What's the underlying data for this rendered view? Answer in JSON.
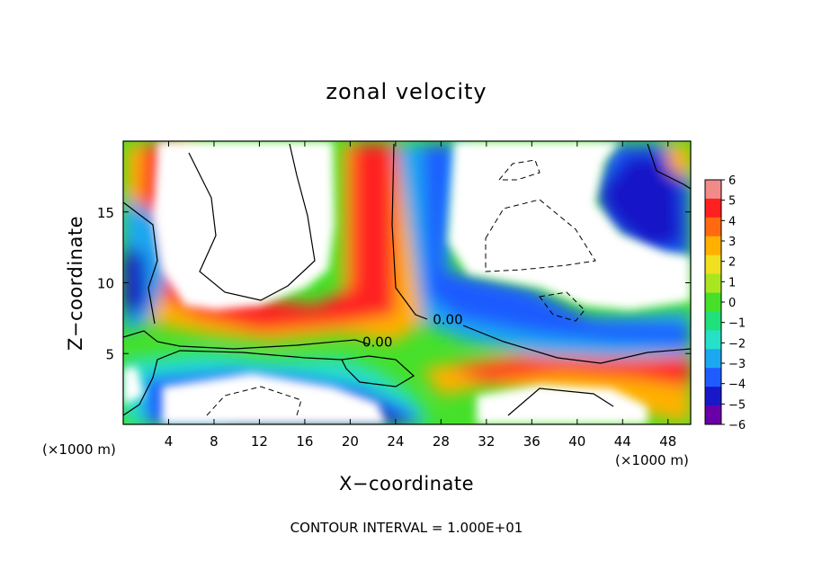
{
  "title": "zonal velocity",
  "footer": "CONTOUR INTERVAL = 1.000E+01",
  "colors": {
    "scale": [
      "#6a00a8",
      "#1818c8",
      "#1f5cff",
      "#1ca8f0",
      "#27e0c8",
      "#1fe07a",
      "#46e02a",
      "#aae620",
      "#f0e020",
      "#ffb000",
      "#ff6a10",
      "#ff2020",
      "#f28a8a"
    ]
  },
  "chart_data": {
    "type": "heatmap",
    "title": "zonal velocity",
    "xlabel": "X−coordinate",
    "ylabel": "Z−coordinate",
    "x_unit_left": "(×1000 m)",
    "x_unit_right": "(×1000 m)",
    "xlim": [
      0,
      50
    ],
    "ylim": [
      0,
      20
    ],
    "xticks": [
      4,
      8,
      12,
      16,
      20,
      24,
      28,
      32,
      36,
      40,
      44,
      48
    ],
    "yticks": [
      5,
      10,
      15
    ],
    "colorbar": {
      "min": -6,
      "max": 6,
      "ticks": [
        "6",
        "5",
        "4",
        "3",
        "2",
        "1",
        "0",
        "−1",
        "−2",
        "−3",
        "−4",
        "−5",
        "−6"
      ]
    },
    "contour_labels": [
      {
        "text": "0.00",
        "x": 22.4,
        "z": 5.8
      },
      {
        "text": "0.00",
        "x": 28.6,
        "z": 7.4
      }
    ],
    "contour_interval": "1.000E+01",
    "grid": false
  }
}
